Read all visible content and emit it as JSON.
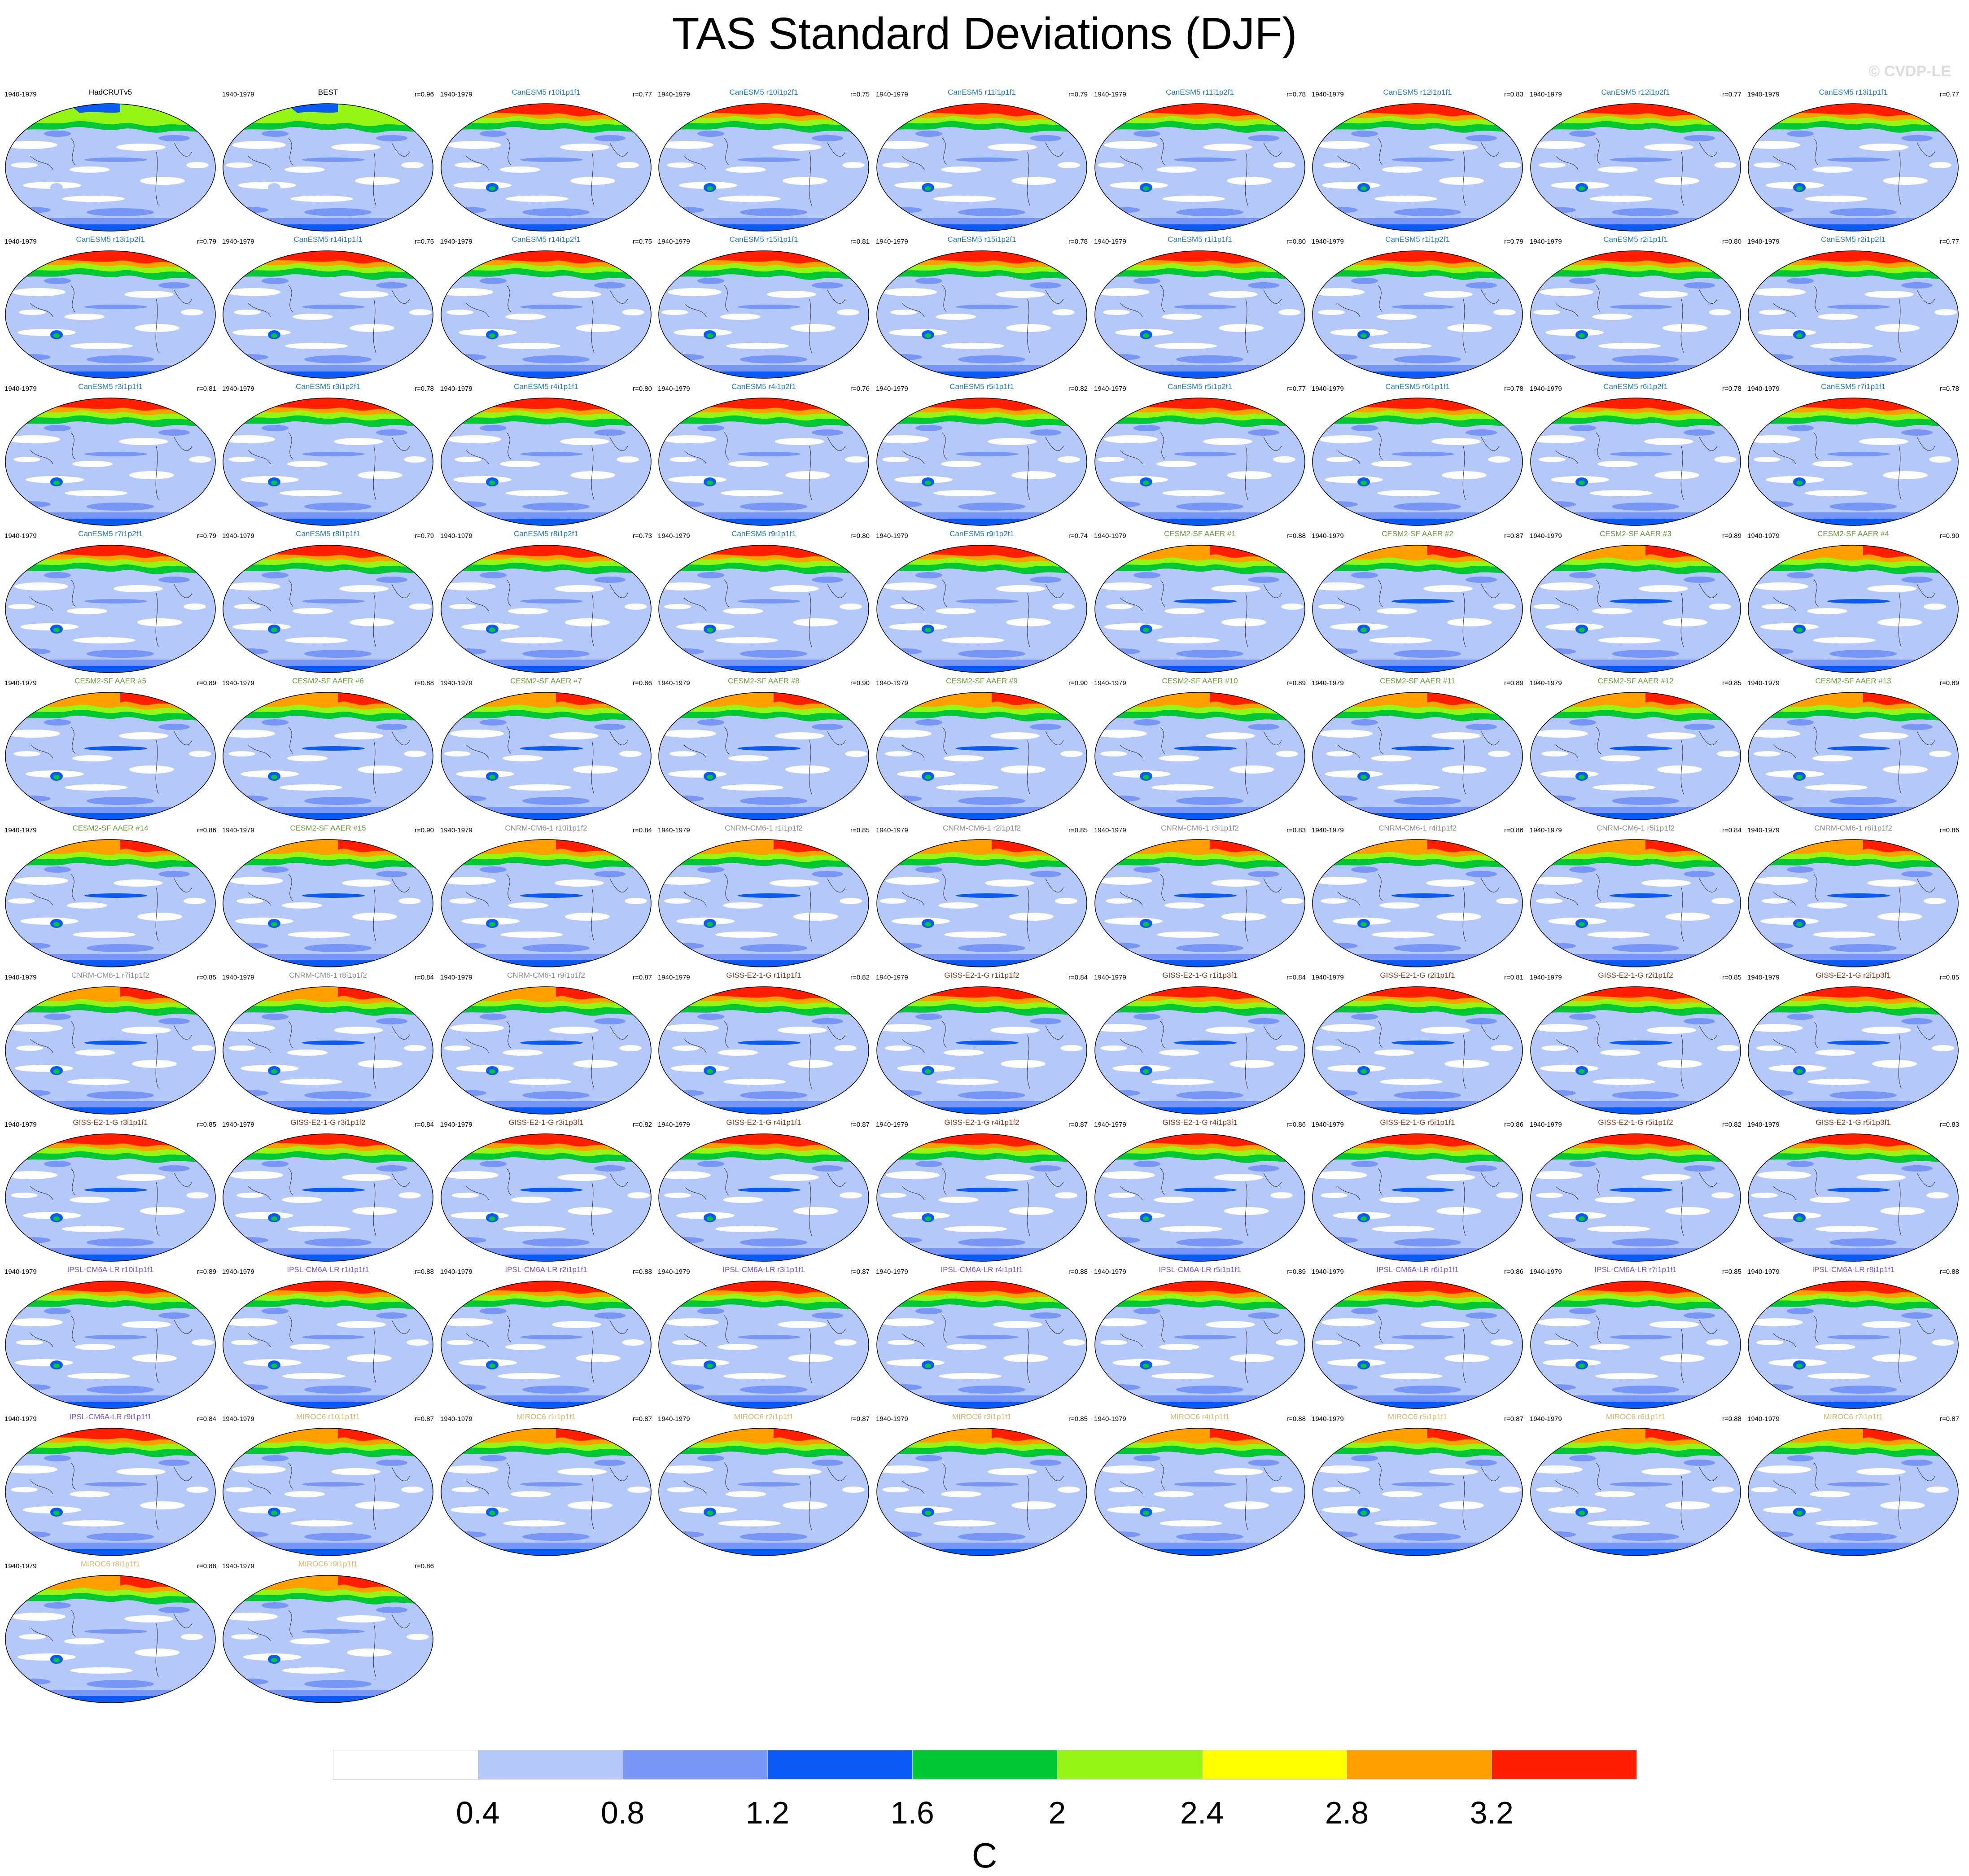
{
  "title": "TAS Standard Deviations (DJF)",
  "watermark": "© CVDP-LE",
  "period": "1940-1979",
  "family_colors": {
    "obs": "#000000",
    "CanESM5": "#1e7ab8",
    "CESM2-SF AAER": "#6a9a3a",
    "CNRM-CM6-1": "#8c8c8c",
    "GISS-E2-1-G": "#7a3a1a",
    "IPSL-CM6A-LR": "#7a52c8",
    "MIROC6": "#d8b46a"
  },
  "panels": [
    {
      "name": "HadCRUTv5",
      "family": "obs",
      "r": ""
    },
    {
      "name": "BEST",
      "family": "obs",
      "r": "r=0.96"
    },
    {
      "name": "CanESM5 r10i1p1f1",
      "family": "CanESM5",
      "r": "r=0.77"
    },
    {
      "name": "CanESM5 r10i1p2f1",
      "family": "CanESM5",
      "r": "r=0.75"
    },
    {
      "name": "CanESM5 r11i1p1f1",
      "family": "CanESM5",
      "r": "r=0.79"
    },
    {
      "name": "CanESM5 r11i1p2f1",
      "family": "CanESM5",
      "r": "r=0.78"
    },
    {
      "name": "CanESM5 r12i1p1f1",
      "family": "CanESM5",
      "r": "r=0.83"
    },
    {
      "name": "CanESM5 r12i1p2f1",
      "family": "CanESM5",
      "r": "r=0.77"
    },
    {
      "name": "CanESM5 r13i1p1f1",
      "family": "CanESM5",
      "r": "r=0.77"
    },
    {
      "name": "CanESM5 r13i1p2f1",
      "family": "CanESM5",
      "r": "r=0.79"
    },
    {
      "name": "CanESM5 r14i1p1f1",
      "family": "CanESM5",
      "r": "r=0.75"
    },
    {
      "name": "CanESM5 r14i1p2f1",
      "family": "CanESM5",
      "r": "r=0.75"
    },
    {
      "name": "CanESM5 r15i1p1f1",
      "family": "CanESM5",
      "r": "r=0.81"
    },
    {
      "name": "CanESM5 r15i1p2f1",
      "family": "CanESM5",
      "r": "r=0.78"
    },
    {
      "name": "CanESM5 r1i1p1f1",
      "family": "CanESM5",
      "r": "r=0.80"
    },
    {
      "name": "CanESM5 r1i1p2f1",
      "family": "CanESM5",
      "r": "r=0.79"
    },
    {
      "name": "CanESM5 r2i1p1f1",
      "family": "CanESM5",
      "r": "r=0.80"
    },
    {
      "name": "CanESM5 r2i1p2f1",
      "family": "CanESM5",
      "r": "r=0.77"
    },
    {
      "name": "CanESM5 r3i1p1f1",
      "family": "CanESM5",
      "r": "r=0.81"
    },
    {
      "name": "CanESM5 r3i1p2f1",
      "family": "CanESM5",
      "r": "r=0.78"
    },
    {
      "name": "CanESM5 r4i1p1f1",
      "family": "CanESM5",
      "r": "r=0.80"
    },
    {
      "name": "CanESM5 r4i1p2f1",
      "family": "CanESM5",
      "r": "r=0.76"
    },
    {
      "name": "CanESM5 r5i1p1f1",
      "family": "CanESM5",
      "r": "r=0.82"
    },
    {
      "name": "CanESM5 r5i1p2f1",
      "family": "CanESM5",
      "r": "r=0.77"
    },
    {
      "name": "CanESM5 r6i1p1f1",
      "family": "CanESM5",
      "r": "r=0.78"
    },
    {
      "name": "CanESM5 r6i1p2f1",
      "family": "CanESM5",
      "r": "r=0.78"
    },
    {
      "name": "CanESM5 r7i1p1f1",
      "family": "CanESM5",
      "r": "r=0.78"
    },
    {
      "name": "CanESM5 r7i1p2f1",
      "family": "CanESM5",
      "r": "r=0.79"
    },
    {
      "name": "CanESM5 r8i1p1f1",
      "family": "CanESM5",
      "r": "r=0.79"
    },
    {
      "name": "CanESM5 r8i1p2f1",
      "family": "CanESM5",
      "r": "r=0.73"
    },
    {
      "name": "CanESM5 r9i1p1f1",
      "family": "CanESM5",
      "r": "r=0.80"
    },
    {
      "name": "CanESM5 r9i1p2f1",
      "family": "CanESM5",
      "r": "r=0.74"
    },
    {
      "name": "CESM2-SF AAER #1",
      "family": "CESM2-SF AAER",
      "r": "r=0.88"
    },
    {
      "name": "CESM2-SF AAER #2",
      "family": "CESM2-SF AAER",
      "r": "r=0.87"
    },
    {
      "name": "CESM2-SF AAER #3",
      "family": "CESM2-SF AAER",
      "r": "r=0.89"
    },
    {
      "name": "CESM2-SF AAER #4",
      "family": "CESM2-SF AAER",
      "r": "r=0.90"
    },
    {
      "name": "CESM2-SF AAER #5",
      "family": "CESM2-SF AAER",
      "r": "r=0.89"
    },
    {
      "name": "CESM2-SF AAER #6",
      "family": "CESM2-SF AAER",
      "r": "r=0.88"
    },
    {
      "name": "CESM2-SF AAER #7",
      "family": "CESM2-SF AAER",
      "r": "r=0.86"
    },
    {
      "name": "CESM2-SF AAER #8",
      "family": "CESM2-SF AAER",
      "r": "r=0.90"
    },
    {
      "name": "CESM2-SF AAER #9",
      "family": "CESM2-SF AAER",
      "r": "r=0.90"
    },
    {
      "name": "CESM2-SF AAER #10",
      "family": "CESM2-SF AAER",
      "r": "r=0.89"
    },
    {
      "name": "CESM2-SF AAER #11",
      "family": "CESM2-SF AAER",
      "r": "r=0.89"
    },
    {
      "name": "CESM2-SF AAER #12",
      "family": "CESM2-SF AAER",
      "r": "r=0.85"
    },
    {
      "name": "CESM2-SF AAER #13",
      "family": "CESM2-SF AAER",
      "r": "r=0.89"
    },
    {
      "name": "CESM2-SF AAER #14",
      "family": "CESM2-SF AAER",
      "r": "r=0.86"
    },
    {
      "name": "CESM2-SF AAER #15",
      "family": "CESM2-SF AAER",
      "r": "r=0.90"
    },
    {
      "name": "CNRM-CM6-1 r10i1p1f2",
      "family": "CNRM-CM6-1",
      "r": "r=0.84"
    },
    {
      "name": "CNRM-CM6-1 r1i1p1f2",
      "family": "CNRM-CM6-1",
      "r": "r=0.85"
    },
    {
      "name": "CNRM-CM6-1 r2i1p1f2",
      "family": "CNRM-CM6-1",
      "r": "r=0.85"
    },
    {
      "name": "CNRM-CM6-1 r3i1p1f2",
      "family": "CNRM-CM6-1",
      "r": "r=0.83"
    },
    {
      "name": "CNRM-CM6-1 r4i1p1f2",
      "family": "CNRM-CM6-1",
      "r": "r=0.86"
    },
    {
      "name": "CNRM-CM6-1 r5i1p1f2",
      "family": "CNRM-CM6-1",
      "r": "r=0.84"
    },
    {
      "name": "CNRM-CM6-1 r6i1p1f2",
      "family": "CNRM-CM6-1",
      "r": "r=0.86"
    },
    {
      "name": "CNRM-CM6-1 r7i1p1f2",
      "family": "CNRM-CM6-1",
      "r": "r=0.85"
    },
    {
      "name": "CNRM-CM6-1 r8i1p1f2",
      "family": "CNRM-CM6-1",
      "r": "r=0.84"
    },
    {
      "name": "CNRM-CM6-1 r9i1p1f2",
      "family": "CNRM-CM6-1",
      "r": "r=0.87"
    },
    {
      "name": "GISS-E2-1-G r1i1p1f1",
      "family": "GISS-E2-1-G",
      "r": "r=0.82"
    },
    {
      "name": "GISS-E2-1-G r1i1p1f2",
      "family": "GISS-E2-1-G",
      "r": "r=0.84"
    },
    {
      "name": "GISS-E2-1-G r1i1p3f1",
      "family": "GISS-E2-1-G",
      "r": "r=0.84"
    },
    {
      "name": "GISS-E2-1-G r2i1p1f1",
      "family": "GISS-E2-1-G",
      "r": "r=0.81"
    },
    {
      "name": "GISS-E2-1-G r2i1p1f2",
      "family": "GISS-E2-1-G",
      "r": "r=0.85"
    },
    {
      "name": "GISS-E2-1-G r2i1p3f1",
      "family": "GISS-E2-1-G",
      "r": "r=0.85"
    },
    {
      "name": "GISS-E2-1-G r3i1p1f1",
      "family": "GISS-E2-1-G",
      "r": "r=0.85"
    },
    {
      "name": "GISS-E2-1-G r3i1p1f2",
      "family": "GISS-E2-1-G",
      "r": "r=0.84"
    },
    {
      "name": "GISS-E2-1-G r3i1p3f1",
      "family": "GISS-E2-1-G",
      "r": "r=0.82"
    },
    {
      "name": "GISS-E2-1-G r4i1p1f1",
      "family": "GISS-E2-1-G",
      "r": "r=0.87"
    },
    {
      "name": "GISS-E2-1-G r4i1p1f2",
      "family": "GISS-E2-1-G",
      "r": "r=0.87"
    },
    {
      "name": "GISS-E2-1-G r4i1p3f1",
      "family": "GISS-E2-1-G",
      "r": "r=0.86"
    },
    {
      "name": "GISS-E2-1-G r5i1p1f1",
      "family": "GISS-E2-1-G",
      "r": "r=0.86"
    },
    {
      "name": "GISS-E2-1-G r5i1p1f2",
      "family": "GISS-E2-1-G",
      "r": "r=0.82"
    },
    {
      "name": "GISS-E2-1-G r5i1p3f1",
      "family": "GISS-E2-1-G",
      "r": "r=0.83"
    },
    {
      "name": "IPSL-CM6A-LR r10i1p1f1",
      "family": "IPSL-CM6A-LR",
      "r": "r=0.89"
    },
    {
      "name": "IPSL-CM6A-LR r1i1p1f1",
      "family": "IPSL-CM6A-LR",
      "r": "r=0.88"
    },
    {
      "name": "IPSL-CM6A-LR r2i1p1f1",
      "family": "IPSL-CM6A-LR",
      "r": "r=0.88"
    },
    {
      "name": "IPSL-CM6A-LR r3i1p1f1",
      "family": "IPSL-CM6A-LR",
      "r": "r=0.87"
    },
    {
      "name": "IPSL-CM6A-LR r4i1p1f1",
      "family": "IPSL-CM6A-LR",
      "r": "r=0.88"
    },
    {
      "name": "IPSL-CM6A-LR r5i1p1f1",
      "family": "IPSL-CM6A-LR",
      "r": "r=0.89"
    },
    {
      "name": "IPSL-CM6A-LR r6i1p1f1",
      "family": "IPSL-CM6A-LR",
      "r": "r=0.86"
    },
    {
      "name": "IPSL-CM6A-LR r7i1p1f1",
      "family": "IPSL-CM6A-LR",
      "r": "r=0.85"
    },
    {
      "name": "IPSL-CM6A-LR r8i1p1f1",
      "family": "IPSL-CM6A-LR",
      "r": "r=0.88"
    },
    {
      "name": "IPSL-CM6A-LR r9i1p1f1",
      "family": "IPSL-CM6A-LR",
      "r": "r=0.84"
    },
    {
      "name": "MIROC6 r10i1p1f1",
      "family": "MIROC6",
      "r": "r=0.87"
    },
    {
      "name": "MIROC6 r1i1p1f1",
      "family": "MIROC6",
      "r": "r=0.87"
    },
    {
      "name": "MIROC6 r2i1p1f1",
      "family": "MIROC6",
      "r": "r=0.87"
    },
    {
      "name": "MIROC6 r3i1p1f1",
      "family": "MIROC6",
      "r": "r=0.85"
    },
    {
      "name": "MIROC6 r4i1p1f1",
      "family": "MIROC6",
      "r": "r=0.88"
    },
    {
      "name": "MIROC6 r5i1p1f1",
      "family": "MIROC6",
      "r": "r=0.87"
    },
    {
      "name": "MIROC6 r6i1p1f1",
      "family": "MIROC6",
      "r": "r=0.88"
    },
    {
      "name": "MIROC6 r7i1p1f1",
      "family": "MIROC6",
      "r": "r=0.87"
    },
    {
      "name": "MIROC6 r8i1p1f1",
      "family": "MIROC6",
      "r": "r=0.88"
    },
    {
      "name": "MIROC6 r9i1p1f1",
      "family": "MIROC6",
      "r": "r=0.86"
    }
  ],
  "colorbar": {
    "unit": "C",
    "ticks": [
      "0.4",
      "0.8",
      "1.2",
      "1.6",
      "2",
      "2.4",
      "2.8",
      "3.2"
    ],
    "colors": [
      "#ffffff",
      "#b4c8fa",
      "#7896f5",
      "#0a5af5",
      "#00c832",
      "#96f514",
      "#ffff00",
      "#ffa000",
      "#ff1e00"
    ]
  }
}
